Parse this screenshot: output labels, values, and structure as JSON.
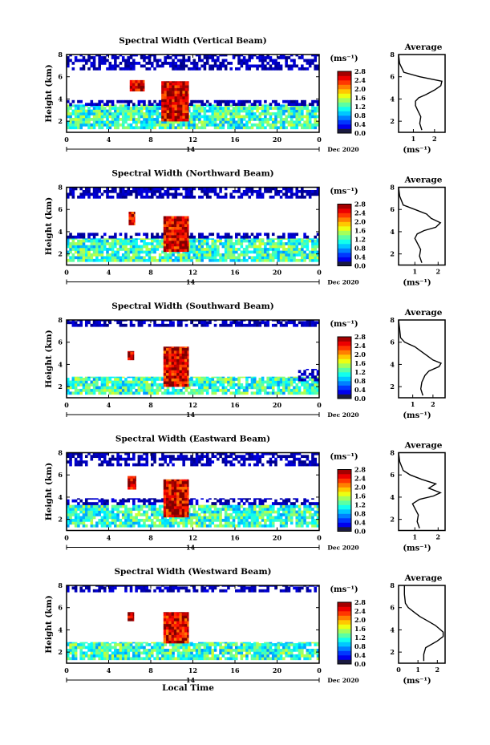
{
  "chart_data": [
    {
      "type": "heatmap",
      "title": "Spectral Width (Vertical Beam)",
      "ylabel": "Height (km)",
      "xticks": [
        "0",
        "4",
        "8",
        "12",
        "16",
        "20",
        "0"
      ],
      "yticks": [
        "2",
        "4",
        "6",
        "8"
      ],
      "xlim": [
        0,
        24
      ],
      "ylim": [
        1,
        8
      ],
      "date_marker": "14",
      "date_label": "Dec 2020",
      "colorbar": {
        "unit": "(ms⁻¹)",
        "ticks": [
          "0.0",
          "0.4",
          "0.8",
          "1.2",
          "1.6",
          "2.0",
          "2.4",
          "2.8"
        ],
        "range": [
          0,
          2.8
        ]
      },
      "bands": [
        {
          "t0": 0,
          "t1": 24,
          "h0": 1.3,
          "h1": 3.5,
          "v": 1.2
        },
        {
          "t0": 0,
          "t1": 24,
          "h0": 3.4,
          "h1": 3.9,
          "v": 0.15
        },
        {
          "t0": 0,
          "t1": 24,
          "h0": 6.6,
          "h1": 8.0,
          "v": 0.15
        },
        {
          "t0": 6.0,
          "t1": 7.4,
          "h0": 4.7,
          "h1": 5.7,
          "v": 2.6
        },
        {
          "t0": 9.0,
          "t1": 11.6,
          "h0": 2.0,
          "h1": 5.6,
          "v": 2.55
        }
      ],
      "average_profile": {
        "title": "Average",
        "xlabel": "(ms⁻¹)",
        "xticks": [
          "1",
          "2"
        ],
        "xlim": [
          0.3,
          2.5
        ],
        "yticks": [
          "2",
          "4",
          "6",
          "8"
        ],
        "ylim": [
          1,
          8
        ],
        "width": [
          1.4,
          1.3,
          1.35,
          1.2,
          1.1,
          1.1,
          1.25,
          1.6,
          2.0,
          2.3,
          2.35,
          1.3,
          0.55,
          0.35,
          0.3
        ],
        "height": [
          1.2,
          1.8,
          2.4,
          3.0,
          3.4,
          3.8,
          4.1,
          4.4,
          4.8,
          5.2,
          5.6,
          6.0,
          6.4,
          7.2,
          8.0
        ]
      }
    },
    {
      "type": "heatmap",
      "title": "Spectral Width (Northward Beam)",
      "ylabel": "Height (km)",
      "xticks": [
        "0",
        "4",
        "8",
        "12",
        "16",
        "20",
        "0"
      ],
      "yticks": [
        "2",
        "4",
        "6",
        "8"
      ],
      "xlim": [
        0,
        24
      ],
      "ylim": [
        1,
        8
      ],
      "date_marker": "14",
      "date_label": "Dec 2020",
      "colorbar": {
        "unit": "(ms⁻¹)",
        "ticks": [
          "0.0",
          "0.4",
          "0.8",
          "1.2",
          "1.6",
          "2.0",
          "2.4",
          "2.8"
        ],
        "range": [
          0,
          2.8
        ]
      },
      "bands": [
        {
          "t0": 0,
          "t1": 24,
          "h0": 1.3,
          "h1": 3.4,
          "v": 1.2
        },
        {
          "t0": 0,
          "t1": 24,
          "h0": 3.4,
          "h1": 3.9,
          "v": 0.15
        },
        {
          "t0": 0,
          "t1": 24,
          "h0": 7.0,
          "h1": 8.0,
          "v": 0.15
        },
        {
          "t0": 5.9,
          "t1": 6.5,
          "h0": 4.6,
          "h1": 5.8,
          "v": 2.6
        },
        {
          "t0": 9.2,
          "t1": 11.6,
          "h0": 2.2,
          "h1": 5.4,
          "v": 2.55
        }
      ],
      "average_profile": {
        "title": "Average",
        "xlabel": "(ms⁻¹)",
        "xticks": [
          "1",
          "2"
        ],
        "xlim": [
          0.3,
          2.3
        ],
        "yticks": [
          "2",
          "4",
          "6",
          "8"
        ],
        "ylim": [
          1,
          8
        ],
        "width": [
          1.3,
          1.2,
          1.25,
          1.1,
          1.0,
          1.1,
          1.4,
          1.9,
          2.1,
          1.7,
          1.5,
          1.0,
          0.5,
          0.35,
          0.3
        ],
        "height": [
          1.2,
          1.8,
          2.4,
          3.0,
          3.4,
          3.8,
          4.1,
          4.4,
          4.8,
          5.2,
          5.6,
          6.0,
          6.4,
          7.2,
          8.0
        ]
      }
    },
    {
      "type": "heatmap",
      "title": "Spectral Width (Southward Beam)",
      "ylabel": "Height (km)",
      "xticks": [
        "0",
        "4",
        "8",
        "12",
        "16",
        "20",
        "0"
      ],
      "yticks": [
        "2",
        "4",
        "6",
        "8"
      ],
      "xlim": [
        0,
        24
      ],
      "ylim": [
        1,
        8
      ],
      "date_marker": "14",
      "date_label": "Dec 2020",
      "colorbar": {
        "unit": "(ms⁻¹)",
        "ticks": [
          "0.0",
          "0.4",
          "0.8",
          "1.2",
          "1.6",
          "2.0",
          "2.4",
          "2.8"
        ],
        "range": [
          0,
          2.8
        ]
      },
      "bands": [
        {
          "t0": 0,
          "t1": 24,
          "h0": 1.3,
          "h1": 2.9,
          "v": 1.2
        },
        {
          "t0": 22,
          "t1": 24,
          "h0": 2.5,
          "h1": 3.6,
          "v": 0.15
        },
        {
          "t0": 0,
          "t1": 24,
          "h0": 7.4,
          "h1": 8.0,
          "v": 0.15
        },
        {
          "t0": 5.8,
          "t1": 6.4,
          "h0": 4.4,
          "h1": 5.2,
          "v": 2.6
        },
        {
          "t0": 9.2,
          "t1": 11.6,
          "h0": 2.0,
          "h1": 5.6,
          "v": 2.55
        }
      ],
      "average_profile": {
        "title": "Average",
        "xlabel": "(ms⁻¹)",
        "xticks": [
          "1",
          "2"
        ],
        "xlim": [
          0.3,
          2.6
        ],
        "yticks": [
          "2",
          "4",
          "6",
          "8"
        ],
        "ylim": [
          1,
          8
        ],
        "width": [
          1.5,
          1.4,
          1.45,
          1.6,
          1.8,
          2.3,
          2.4,
          2.0,
          1.7,
          1.4,
          1.1,
          0.6,
          0.4,
          0.35,
          0.3
        ],
        "height": [
          1.2,
          1.8,
          2.4,
          3.0,
          3.4,
          3.8,
          4.1,
          4.4,
          4.8,
          5.2,
          5.6,
          6.0,
          6.4,
          7.2,
          8.0
        ]
      }
    },
    {
      "type": "heatmap",
      "title": "Spectral Width (Eastward Beam)",
      "ylabel": "Height (km)",
      "xticks": [
        "0",
        "4",
        "8",
        "12",
        "16",
        "20",
        "0"
      ],
      "yticks": [
        "2",
        "4",
        "6",
        "8"
      ],
      "xlim": [
        0,
        24
      ],
      "ylim": [
        1,
        8
      ],
      "date_marker": "14",
      "date_label": "Dec 2020",
      "colorbar": {
        "unit": "(ms⁻¹)",
        "ticks": [
          "0.0",
          "0.4",
          "0.8",
          "1.2",
          "1.6",
          "2.0",
          "2.4",
          "2.8"
        ],
        "range": [
          0,
          2.8
        ]
      },
      "bands": [
        {
          "t0": 0,
          "t1": 24,
          "h0": 1.3,
          "h1": 3.3,
          "v": 1.2
        },
        {
          "t0": 0,
          "t1": 24,
          "h0": 3.3,
          "h1": 3.9,
          "v": 0.15
        },
        {
          "t0": 0,
          "t1": 24,
          "h0": 6.8,
          "h1": 8.0,
          "v": 0.15
        },
        {
          "t0": 5.8,
          "t1": 6.6,
          "h0": 4.7,
          "h1": 5.9,
          "v": 2.6
        },
        {
          "t0": 9.2,
          "t1": 11.6,
          "h0": 2.2,
          "h1": 5.6,
          "v": 2.55
        }
      ],
      "average_profile": {
        "title": "Average",
        "xlabel": "(ms⁻¹)",
        "xticks": [
          "1",
          "2"
        ],
        "xlim": [
          0.3,
          2.3
        ],
        "yticks": [
          "2",
          "4",
          "6",
          "8"
        ],
        "ylim": [
          1,
          8
        ],
        "width": [
          1.2,
          1.1,
          1.15,
          1.0,
          0.9,
          1.2,
          1.8,
          2.1,
          1.6,
          1.9,
          1.3,
          0.8,
          0.5,
          0.35,
          0.3
        ],
        "height": [
          1.2,
          1.8,
          2.4,
          3.0,
          3.4,
          3.8,
          4.1,
          4.4,
          4.8,
          5.2,
          5.6,
          6.0,
          6.4,
          7.2,
          8.0
        ]
      }
    },
    {
      "type": "heatmap",
      "title": "Spectral Width (Westward Beam)",
      "ylabel": "Height (km)",
      "xlabel": "Local Time",
      "xticks": [
        "0",
        "4",
        "8",
        "12",
        "16",
        "20",
        "0"
      ],
      "yticks": [
        "2",
        "4",
        "6",
        "8"
      ],
      "xlim": [
        0,
        24
      ],
      "ylim": [
        1,
        8
      ],
      "date_marker": "14",
      "date_label": "Dec 2020",
      "colorbar": {
        "unit": "(ms⁻¹)",
        "ticks": [
          "0.0",
          "0.4",
          "0.8",
          "1.2",
          "1.6",
          "2.0",
          "2.4",
          "2.8"
        ],
        "range": [
          0,
          2.8
        ]
      },
      "bands": [
        {
          "t0": 0,
          "t1": 24,
          "h0": 1.3,
          "h1": 2.9,
          "v": 1.2
        },
        {
          "t0": 0,
          "t1": 24,
          "h0": 7.4,
          "h1": 8.0,
          "v": 0.15
        },
        {
          "t0": 5.8,
          "t1": 6.4,
          "h0": 4.8,
          "h1": 5.6,
          "v": 2.6
        },
        {
          "t0": 9.2,
          "t1": 11.6,
          "h0": 2.8,
          "h1": 5.6,
          "v": 2.55
        }
      ],
      "average_profile": {
        "title": "Average",
        "xlabel": "(ms⁻¹)",
        "xticks": [
          "0",
          "1",
          "2"
        ],
        "xlim": [
          0,
          2.4
        ],
        "yticks": [
          "2",
          "4",
          "6",
          "8"
        ],
        "ylim": [
          1,
          8
        ],
        "width": [
          1.3,
          1.3,
          1.4,
          2.0,
          2.3,
          2.3,
          2.1,
          1.9,
          1.5,
          1.1,
          0.8,
          0.5,
          0.35,
          0.3,
          0.3
        ],
        "height": [
          1.2,
          1.8,
          2.4,
          3.0,
          3.4,
          3.8,
          4.1,
          4.4,
          4.8,
          5.2,
          5.6,
          6.0,
          6.4,
          7.2,
          8.0
        ]
      }
    }
  ]
}
